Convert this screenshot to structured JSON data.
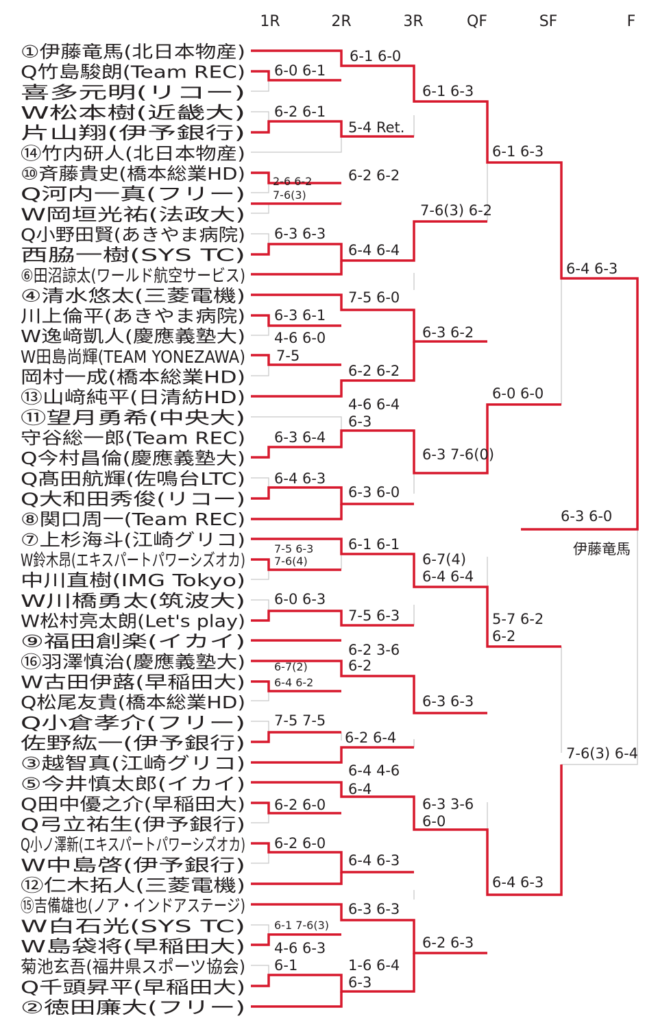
{
  "rounds": [
    "1R",
    "2R",
    "3R",
    "QF",
    "SF",
    "F"
  ],
  "players": [
    "①伊藤竜馬(北日本物産)",
    "Q竹島駿朗(Team REC)",
    "喜多元明(リコー)",
    "W松本樹(近畿大)",
    "片山翔(伊予銀行)",
    "⑭竹内研人(北日本物産)",
    "⑩斉藤貴史(橋本総業HD)",
    "Q河内一真(フリー)",
    "W岡垣光祐(法政大)",
    "Q小野田賢(あきやま病院)",
    "西脇一樹(SYS TC)",
    "⑥田沼諒太(ワールド航空サービス)",
    "④清水悠太(三菱電機)",
    "川上倫平(あきやま病院)",
    "W逸﨑凱人(慶應義塾大)",
    "W田島尚輝(TEAM YONEZAWA)",
    "岡村一成(橋本総業HD)",
    "⑬山﨑純平(日清紡HD)",
    "⑪望月勇希(中央大)",
    "守谷総一郎(Team REC)",
    "Q今村昌倫(慶應義塾大)",
    "Q髙田航輝(佐鳴台LTC)",
    "Q大和田秀俊(リコー)",
    "⑧関口周一(Team REC)",
    "⑦上杉海斗(江崎グリコ)",
    "W鈴木昂(エキスパートパワーシズオカ)",
    "中川直樹(IMG Tokyo)",
    "W川橋勇太(筑波大)",
    "W松村亮太朗(Let's play)",
    "⑨福田創楽(イカイ)",
    "⑯羽澤慎治(慶應義塾大)",
    "W古田伊蕗(早稲田大)",
    "Q松尾友貴(橋本総業HD)",
    "Q小倉孝介(フリー)",
    "佐野紘一(伊予銀行)",
    "③越智真(江崎グリコ)",
    "⑤今井慎太郎(イカイ)",
    "Q田中優之介(早稲田大)",
    "Q弓立祐生(伊予銀行)",
    "Q小ノ澤新(エキスパートパワーシズオカ)",
    "W中島啓(伊予銀行)",
    "⑫仁木拓人(三菱電機)",
    "⑮吉備雄也(ノア・インドアステージ)",
    "W白石光(SYS TC)",
    "W島袋将(早稲田大)",
    "菊池玄吾(福井県スポーツ協会)",
    "Q千頭昇平(早稲田大)",
    "②徳田廉大(フリー)"
  ],
  "champion": "伊藤竜馬",
  "scores": {
    "r1": [
      "6-0 6-1",
      "6-2 6-1",
      "2-6 6-2",
      "7-6(3)",
      "6-3 6-3",
      "6-3 6-1",
      "4-6 6-0",
      "7-5",
      "6-3 6-4",
      "6-4 6-3",
      "7-5 6-3",
      "7-6(4)",
      "6-0 6-3",
      "6-7(2)",
      "6-4 6-2",
      "7-5 7-5",
      "6-2 6-0",
      "6-2 6-0",
      "6-1 7-6(3)",
      "4-6 6-3",
      "6-1"
    ],
    "r2": [
      "6-1 6-0",
      "5-4 Ret.",
      "6-2 6-2",
      "6-4 6-4",
      "7-5 6-0",
      "6-2 6-2",
      "4-6 6-4",
      "6-3",
      "6-3 6-0",
      "6-1 6-1",
      "7-5 6-3",
      "6-2 3-6",
      "6-2",
      "6-2 6-4",
      "6-4 4-6",
      "6-4",
      "6-4 6-3",
      "6-3 6-3",
      "1-6 6-4",
      "6-3"
    ],
    "r3": [
      "6-1 6-3",
      "7-6(3) 6-2",
      "6-3 6-2",
      "6-3 7-6(0)",
      "6-7(4)",
      "6-4 6-4",
      "6-3 6-3",
      "6-3 3-6",
      "6-0",
      "6-2 6-3"
    ],
    "qf": [
      "6-1 6-3",
      "6-0 6-0",
      "5-7 6-2",
      "6-2",
      "6-4 6-3"
    ],
    "sf": [
      "6-4 6-3",
      "7-6(3) 6-4"
    ],
    "f": [
      "6-3 6-0"
    ]
  },
  "colors": {
    "winner_line": "#d7192d",
    "grey_line": "#c8c8c8",
    "text": "#231f20"
  }
}
